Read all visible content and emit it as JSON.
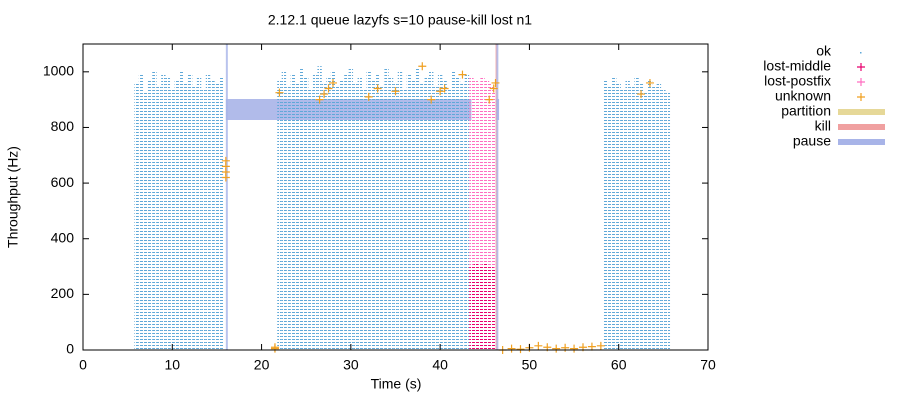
{
  "chart_data": {
    "type": "scatter",
    "title": "2.12.1 queue lazyfs s=10 pause-kill lost n1",
    "x_label": "Time (s)",
    "y_label": "Throughput (Hz)",
    "xlim": [
      0,
      70
    ],
    "xticks": [
      0,
      10,
      20,
      30,
      40,
      50,
      60,
      70
    ],
    "ylim": [
      0,
      1100
    ],
    "yticks": [
      0,
      200,
      400,
      600,
      800,
      1000
    ],
    "series": [
      {
        "name": "ok",
        "color": "#5fa8d8",
        "marker": "column",
        "x": [
          6,
          6.5,
          7,
          7.5,
          8,
          8.5,
          9,
          9.5,
          10,
          10.5,
          11,
          11.5,
          12,
          12.5,
          13,
          13.5,
          14,
          14.5,
          15,
          15.5,
          22,
          22.5,
          23,
          23.5,
          24,
          24.5,
          25,
          25.5,
          26,
          26.5,
          27,
          27.5,
          28,
          28.5,
          29,
          29.5,
          30,
          30.5,
          31,
          31.5,
          32,
          32.5,
          33,
          33.5,
          34,
          34.5,
          35,
          35.5,
          36,
          36.5,
          37,
          37.5,
          38,
          38.5,
          39,
          39.5,
          40,
          40.5,
          41,
          41.5,
          42,
          42.5,
          43,
          58.5,
          59,
          59.5,
          60,
          60.5,
          61,
          61.5,
          62,
          62.5,
          63,
          63.5,
          64,
          64.5,
          65,
          65.5
        ],
        "values": [
          960,
          990,
          930,
          970,
          1000,
          950,
          990,
          980,
          940,
          970,
          1000,
          960,
          990,
          950,
          980,
          940,
          990,
          970,
          960,
          980,
          970,
          1000,
          950,
          990,
          960,
          1010,
          980,
          940,
          990,
          1020,
          960,
          980,
          1000,
          950,
          970,
          990,
          1010,
          960,
          980,
          940,
          1000,
          970,
          990,
          950,
          1010,
          980,
          960,
          1000,
          940,
          990,
          970,
          1010,
          960,
          980,
          1000,
          950,
          990,
          970,
          940,
          1000,
          980,
          960,
          990,
          970,
          950,
          980,
          960,
          940,
          970,
          950,
          980,
          960,
          930,
          970,
          950,
          960,
          940,
          930
        ]
      },
      {
        "name": "lost-postfix",
        "color": "#ff6ec0",
        "marker": "column",
        "x": [
          43.5,
          43.75,
          44,
          44.25,
          44.5,
          44.75,
          45,
          45.25,
          45.5,
          45.75,
          46
        ],
        "values": [
          980,
          960,
          970,
          950,
          960,
          980,
          940,
          970,
          960,
          950,
          930
        ]
      },
      {
        "name": "lost-middle",
        "color": "#e8006e",
        "marker": "column",
        "x": [
          43.5,
          43.75,
          44,
          44.25,
          44.5,
          44.75,
          45,
          45.25,
          45.5,
          45.75,
          46
        ],
        "values": [
          300,
          290,
          310,
          280,
          300,
          290,
          310,
          300,
          280,
          300,
          290
        ]
      },
      {
        "name": "unknown",
        "color": "#f0a020",
        "marker": "plus",
        "x": [
          16,
          16,
          16,
          16,
          21.5,
          21.5,
          22,
          26.5,
          27,
          27.5,
          28,
          32,
          33,
          35,
          38,
          39,
          40,
          40.5,
          42.5,
          45.5,
          46,
          46.2,
          47,
          48,
          49,
          50,
          51,
          52,
          53,
          54,
          55,
          56,
          57,
          58,
          62.5,
          63.5
        ],
        "values": [
          620,
          640,
          660,
          680,
          5,
          10,
          925,
          900,
          920,
          940,
          960,
          910,
          940,
          930,
          1020,
          900,
          930,
          940,
          990,
          900,
          940,
          960,
          0,
          5,
          3,
          8,
          15,
          10,
          5,
          8,
          5,
          10,
          12,
          15,
          920,
          960
        ]
      }
    ],
    "nemesis": [
      {
        "name": "partition",
        "color": "#e6d898",
        "intervals": []
      },
      {
        "name": "kill",
        "color": "#f0a0a0",
        "intervals": [
          [
            46.2,
            46.5
          ]
        ]
      },
      {
        "name": "pause",
        "color": "#a8b4e8",
        "intervals": [
          [
            16,
            43.5
          ],
          [
            46.3,
            46.6
          ]
        ]
      }
    ],
    "legend_order": [
      "ok",
      "lost-middle",
      "lost-postfix",
      "unknown",
      "partition",
      "kill",
      "pause"
    ]
  }
}
